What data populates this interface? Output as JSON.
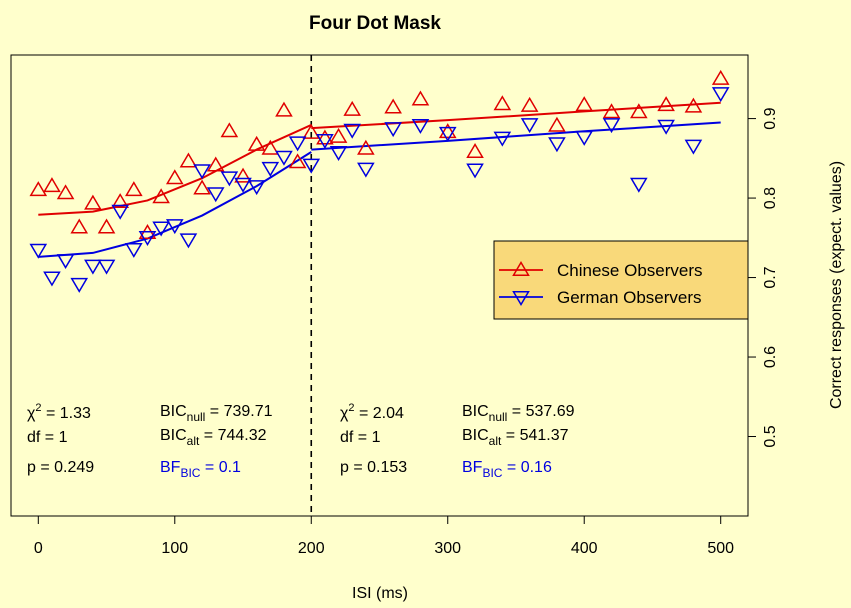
{
  "chart_data": {
    "type": "scatter",
    "title": "Four Dot Mask",
    "xlabel": "ISI (ms)",
    "ylabel": "Correct responses (expect. values)",
    "xlim": [
      -20,
      520
    ],
    "ylim": [
      0.4,
      0.98
    ],
    "x_ticks": [
      0,
      100,
      200,
      300,
      400,
      500
    ],
    "y_ticks": [
      0.5,
      0.6,
      0.7,
      0.8,
      0.9
    ],
    "y_axis_side": "right",
    "grid": false,
    "breakpoint_x": 200,
    "legend_position": "right",
    "series": [
      {
        "name": "Chinese Observers",
        "color": "#E00000",
        "marker": "triangle-up",
        "points": [
          [
            0,
            0.81
          ],
          [
            10,
            0.815
          ],
          [
            20,
            0.806
          ],
          [
            30,
            0.763
          ],
          [
            40,
            0.793
          ],
          [
            50,
            0.763
          ],
          [
            60,
            0.795
          ],
          [
            70,
            0.81
          ],
          [
            80,
            0.756
          ],
          [
            90,
            0.801
          ],
          [
            100,
            0.825
          ],
          [
            110,
            0.846
          ],
          [
            120,
            0.812
          ],
          [
            130,
            0.841
          ],
          [
            140,
            0.884
          ],
          [
            150,
            0.827
          ],
          [
            160,
            0.867
          ],
          [
            170,
            0.862
          ],
          [
            180,
            0.91
          ],
          [
            190,
            0.845
          ],
          [
            200,
            0.882
          ],
          [
            210,
            0.875
          ],
          [
            220,
            0.877
          ],
          [
            230,
            0.911
          ],
          [
            240,
            0.862
          ],
          [
            260,
            0.914
          ],
          [
            280,
            0.924
          ],
          [
            300,
            0.883
          ],
          [
            320,
            0.858
          ],
          [
            340,
            0.918
          ],
          [
            360,
            0.916
          ],
          [
            380,
            0.891
          ],
          [
            400,
            0.917
          ],
          [
            420,
            0.908
          ],
          [
            440,
            0.908
          ],
          [
            460,
            0.917
          ],
          [
            480,
            0.915
          ],
          [
            500,
            0.95
          ]
        ],
        "fit": [
          [
            0,
            0.779
          ],
          [
            40,
            0.783
          ],
          [
            80,
            0.797
          ],
          [
            120,
            0.825
          ],
          [
            160,
            0.861
          ],
          [
            200,
            0.892
          ],
          [
            200,
            0.888
          ],
          [
            300,
            0.898
          ],
          [
            400,
            0.909
          ],
          [
            500,
            0.92
          ]
        ]
      },
      {
        "name": "German Observers",
        "color": "#0000E0",
        "marker": "triangle-down",
        "points": [
          [
            0,
            0.735
          ],
          [
            10,
            0.7
          ],
          [
            20,
            0.722
          ],
          [
            30,
            0.692
          ],
          [
            40,
            0.715
          ],
          [
            50,
            0.715
          ],
          [
            60,
            0.784
          ],
          [
            70,
            0.736
          ],
          [
            80,
            0.751
          ],
          [
            90,
            0.763
          ],
          [
            100,
            0.766
          ],
          [
            110,
            0.748
          ],
          [
            120,
            0.835
          ],
          [
            130,
            0.806
          ],
          [
            140,
            0.826
          ],
          [
            150,
            0.818
          ],
          [
            160,
            0.815
          ],
          [
            170,
            0.838
          ],
          [
            180,
            0.852
          ],
          [
            190,
            0.87
          ],
          [
            200,
            0.842
          ],
          [
            210,
            0.873
          ],
          [
            220,
            0.858
          ],
          [
            230,
            0.886
          ],
          [
            240,
            0.837
          ],
          [
            260,
            0.888
          ],
          [
            280,
            0.892
          ],
          [
            300,
            0.882
          ],
          [
            320,
            0.836
          ],
          [
            340,
            0.876
          ],
          [
            360,
            0.893
          ],
          [
            380,
            0.869
          ],
          [
            400,
            0.877
          ],
          [
            420,
            0.893
          ],
          [
            440,
            0.818
          ],
          [
            460,
            0.891
          ],
          [
            480,
            0.866
          ],
          [
            500,
            0.932
          ]
        ],
        "fit": [
          [
            0,
            0.726
          ],
          [
            40,
            0.731
          ],
          [
            80,
            0.749
          ],
          [
            120,
            0.778
          ],
          [
            160,
            0.815
          ],
          [
            200,
            0.858
          ],
          [
            200,
            0.861
          ],
          [
            300,
            0.872
          ],
          [
            400,
            0.884
          ],
          [
            500,
            0.895
          ]
        ]
      }
    ]
  },
  "stats": {
    "left": {
      "chi2": "1.33",
      "df": "1",
      "p": "0.249",
      "bic_null": "739.71",
      "bic_alt": "744.32",
      "bf_bic": "0.1"
    },
    "right": {
      "chi2": "2.04",
      "df": "1",
      "p": "0.153",
      "bic_null": "537.69",
      "bic_alt": "541.37",
      "bf_bic": "0.16"
    },
    "labels": {
      "chi": "χ",
      "sq": "2",
      "df": "df",
      "p": "p",
      "bic": "BIC",
      "null": "null",
      "alt": "alt",
      "bf": "BF",
      "eq": " = "
    }
  },
  "colors": {
    "background": "#FFFFCC",
    "legend_bg": "#F9D97A",
    "bf_text": "#0000E0"
  }
}
